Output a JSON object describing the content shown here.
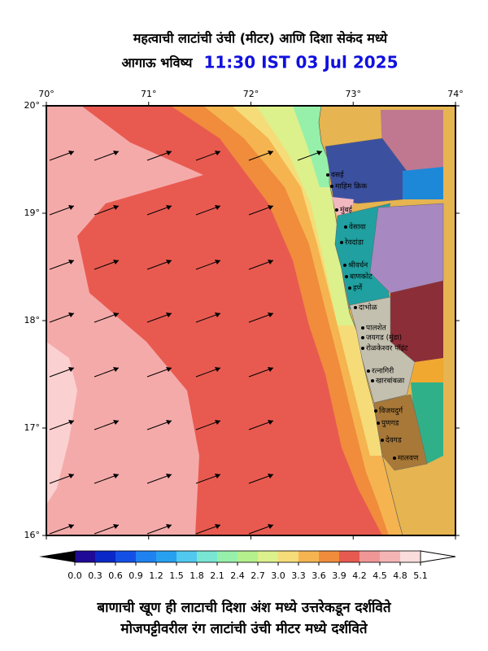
{
  "header": {
    "title": "महत्वाची लाटांची उंची (मीटर) आणि दिशा सेकंद मध्ये",
    "subtitle": "आगाऊ भविष्य",
    "time": "11:30 IST 03 Jul 2025"
  },
  "map": {
    "xlim": [
      70,
      74
    ],
    "ylim": [
      16,
      20
    ],
    "xticks": [
      {
        "value": 70,
        "label": "70°"
      },
      {
        "value": 71,
        "label": "71°"
      },
      {
        "value": 72,
        "label": "72°"
      },
      {
        "value": 73,
        "label": "73°"
      },
      {
        "value": 74,
        "label": "74°"
      }
    ],
    "yticks": [
      {
        "value": 20,
        "label": "20°"
      },
      {
        "value": 19,
        "label": "19°"
      },
      {
        "value": 18,
        "label": "18°"
      },
      {
        "value": 17,
        "label": "17°"
      },
      {
        "value": 16,
        "label": "16°"
      }
    ],
    "places": [
      "वसई",
      "माहिम क्रिक",
      "मुंबई",
      "वेसावा",
      "रेवदांडा",
      "श्रीवर्धन",
      "बाणकोट",
      "हर्णे",
      "दाभोळ",
      "पालशेत",
      "जयगड (मुंडा)",
      "रोळकेश्वर पॉइंट",
      "रत्नागिरी",
      "खारबांबळा",
      "विजयदुर्ग",
      "पुणगड",
      "देवगड",
      "मालवण"
    ]
  },
  "colorbar": {
    "ticks": [
      {
        "value": 0,
        "label": "0.0"
      },
      {
        "value": 0.3,
        "label": "0.3"
      },
      {
        "value": 0.6,
        "label": "0.6"
      },
      {
        "value": 0.9,
        "label": "0.9"
      },
      {
        "value": 1.2,
        "label": "1.2"
      },
      {
        "value": 1.5,
        "label": "1.5"
      },
      {
        "value": 1.8,
        "label": "1.8"
      },
      {
        "value": 2.1,
        "label": "2.1"
      },
      {
        "value": 2.4,
        "label": "2.4"
      },
      {
        "value": 2.7,
        "label": "2.7"
      },
      {
        "value": 3,
        "label": "3.0"
      },
      {
        "value": 3.3,
        "label": "3.3"
      },
      {
        "value": 3.6,
        "label": "3.6"
      },
      {
        "value": 3.9,
        "label": "3.9"
      },
      {
        "value": 4.2,
        "label": "4.2"
      },
      {
        "value": 4.5,
        "label": "4.5"
      },
      {
        "value": 4.8,
        "label": "4.8"
      },
      {
        "value": 5.1,
        "label": "5.1"
      }
    ],
    "colors": [
      "#1e0a96",
      "#0a28c8",
      "#1450e6",
      "#1e82f0",
      "#28a0f0",
      "#50c8f0",
      "#78e6d2",
      "#96f0aa",
      "#b4f08c",
      "#dcf08c",
      "#f5dc78",
      "#f5b450",
      "#f08c3c",
      "#e65a50",
      "#f09696",
      "#f5b4b4",
      "#fadcdc"
    ]
  },
  "footer": {
    "line1": "बाणाची खूण ही लाटाची दिशा अंश मध्ये उत्तरेकडून दर्शविते",
    "line2": "मोजपट्टीवरील रंग लाटांची उंची मीटर मध्ये दर्शविते"
  }
}
